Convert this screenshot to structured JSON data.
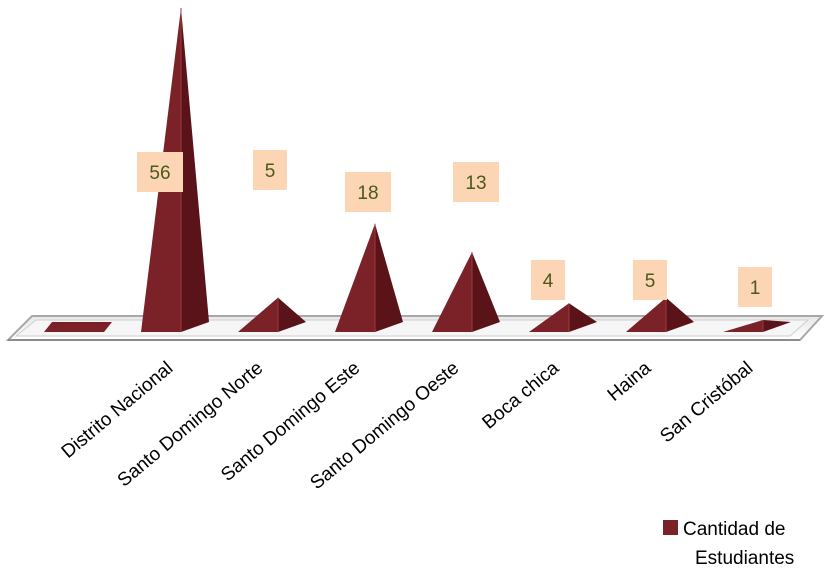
{
  "chart_data": {
    "type": "bar",
    "style": "3d-pyramid",
    "categories": [
      "",
      "Distrito Nacional",
      "Santo Domingo Norte",
      "Santo Domingo Este",
      "Santo Domingo Oeste",
      "Boca chica",
      "Haina",
      "San Cristóbal"
    ],
    "series": [
      {
        "name": "Cantidad de Estudiantes",
        "values": [
          0,
          56,
          5,
          18,
          13,
          4,
          5,
          1
        ]
      }
    ],
    "data_labels": [
      "",
      "56",
      "5",
      "18",
      "13",
      "4",
      "5",
      "1"
    ],
    "legend": {
      "position": "bottom-right",
      "lines": [
        "Cantidad de",
        "Estudiantes"
      ]
    },
    "colors": {
      "bar": "#7b2229",
      "bar_dark": "#5a1419",
      "bar_light": "#9a3a40",
      "label_bg": "#fcd5b4",
      "label_text": "#4a5a1a",
      "floor": "#ffffff",
      "floor_edge": "#b8b8b8"
    }
  }
}
